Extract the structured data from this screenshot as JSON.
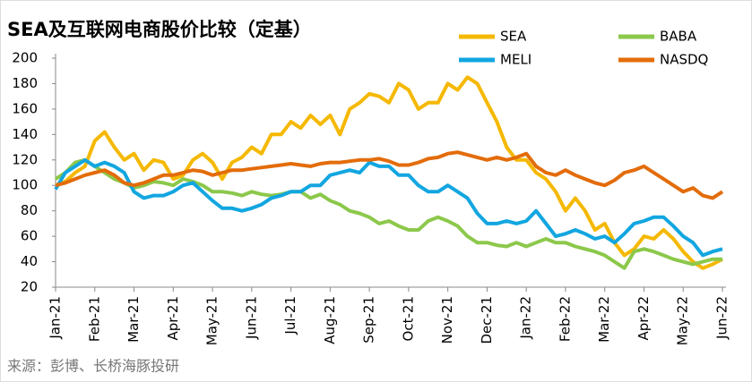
{
  "chart_data": {
    "type": "line",
    "title": "SEA及互联网电商股价比较（定基）",
    "source": "来源：彭博、长桥海豚投研",
    "categories": [
      "Jan-21",
      null,
      null,
      null,
      "Feb-21",
      null,
      null,
      null,
      "Mar-21",
      null,
      null,
      null,
      "Apr-21",
      null,
      null,
      null,
      "May-21",
      null,
      null,
      null,
      "Jun-21",
      null,
      null,
      null,
      "Jul-21",
      null,
      null,
      null,
      "Aug-21",
      null,
      null,
      null,
      "Sep-21",
      null,
      null,
      null,
      "Oct-21",
      null,
      null,
      null,
      "Nov-21",
      null,
      null,
      null,
      "Dec-21",
      null,
      null,
      null,
      "Jan-22",
      null,
      null,
      null,
      "Feb-22",
      null,
      null,
      null,
      "Mar-22",
      null,
      null,
      null,
      "Apr-22",
      null,
      null,
      null,
      "May-22",
      null,
      null,
      null,
      "Jun-22"
    ],
    "series": [
      {
        "name": "SEA",
        "color": "#f5b800",
        "values": [
          100,
          103,
          110,
          115,
          135,
          142,
          130,
          120,
          125,
          112,
          120,
          118,
          105,
          108,
          120,
          125,
          118,
          105,
          118,
          122,
          130,
          125,
          140,
          140,
          150,
          145,
          155,
          148,
          155,
          140,
          160,
          165,
          172,
          170,
          165,
          180,
          175,
          160,
          165,
          165,
          180,
          175,
          185,
          180,
          165,
          150,
          130,
          120,
          120,
          110,
          105,
          95,
          80,
          90,
          80,
          65,
          70,
          55,
          45,
          50,
          60,
          58,
          65,
          58,
          48,
          40,
          35,
          38,
          42
        ]
      },
      {
        "name": "BABA",
        "color": "#8cc84b",
        "values": [
          105,
          110,
          118,
          120,
          115,
          110,
          105,
          102,
          98,
          100,
          103,
          102,
          100,
          105,
          103,
          100,
          95,
          95,
          94,
          92,
          95,
          93,
          92,
          93,
          95,
          95,
          90,
          93,
          88,
          85,
          80,
          78,
          75,
          70,
          72,
          68,
          65,
          65,
          72,
          75,
          72,
          68,
          60,
          55,
          55,
          53,
          52,
          55,
          52,
          55,
          58,
          55,
          55,
          52,
          50,
          48,
          45,
          40,
          35,
          48,
          50,
          48,
          45,
          42,
          40,
          38,
          40,
          42,
          42
        ]
      },
      {
        "name": "MELI",
        "color": "#12a6e0",
        "values": [
          97,
          110,
          115,
          120,
          115,
          118,
          115,
          110,
          95,
          90,
          92,
          92,
          95,
          100,
          102,
          95,
          88,
          82,
          82,
          80,
          82,
          85,
          90,
          92,
          95,
          95,
          100,
          100,
          108,
          110,
          112,
          110,
          118,
          115,
          115,
          108,
          108,
          100,
          95,
          95,
          100,
          95,
          90,
          78,
          70,
          70,
          72,
          70,
          72,
          80,
          70,
          60,
          62,
          65,
          62,
          58,
          60,
          55,
          62,
          70,
          72,
          75,
          75,
          68,
          60,
          55,
          45,
          48,
          50
        ]
      },
      {
        "name": "NASDQ",
        "color": "#e36c0a",
        "values": [
          100,
          102,
          105,
          108,
          110,
          112,
          108,
          102,
          100,
          102,
          105,
          108,
          108,
          110,
          112,
          111,
          108,
          110,
          112,
          112,
          113,
          114,
          115,
          116,
          117,
          116,
          115,
          117,
          118,
          118,
          119,
          120,
          120,
          121,
          119,
          116,
          116,
          118,
          121,
          122,
          125,
          126,
          124,
          122,
          120,
          122,
          120,
          122,
          125,
          115,
          110,
          108,
          112,
          108,
          105,
          102,
          100,
          104,
          110,
          112,
          115,
          110,
          105,
          100,
          95,
          98,
          92,
          90,
          95
        ]
      }
    ],
    "ylim": [
      20,
      200
    ],
    "yticks": [
      20,
      40,
      60,
      80,
      100,
      120,
      140,
      160,
      180,
      200
    ]
  }
}
